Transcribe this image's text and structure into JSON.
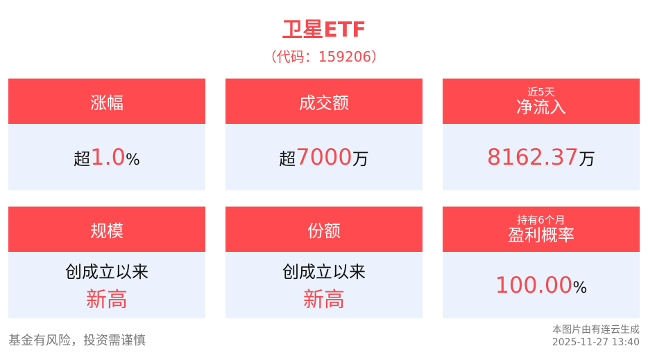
{
  "title": "卫星ETF",
  "code": "（代码：159206）",
  "cards": [
    {
      "label": "涨幅",
      "prefix": "超",
      "value": "1.0",
      "unit": "%"
    },
    {
      "label": "成交额",
      "prefix": "超",
      "value": "7000",
      "unit": "万"
    },
    {
      "label_small": "近5天",
      "label": "净流入",
      "value": "8162.37",
      "unit": "万"
    },
    {
      "label": "规模",
      "line1": "创成立以来",
      "line2": "新高"
    },
    {
      "label": "份额",
      "line1": "创成立以来",
      "line2": "新高"
    },
    {
      "label_small": "持有6个月",
      "label": "盈利概率",
      "value": "100.00",
      "unit": "%"
    }
  ],
  "footer": {
    "risk": "基金有风险，投资需谨慎",
    "generator": "本图片由有连云生成",
    "timestamp": "2025-11-27 13:40"
  },
  "colors": {
    "accent": "#ff4b50",
    "card_bg": "#ebf2fd"
  }
}
